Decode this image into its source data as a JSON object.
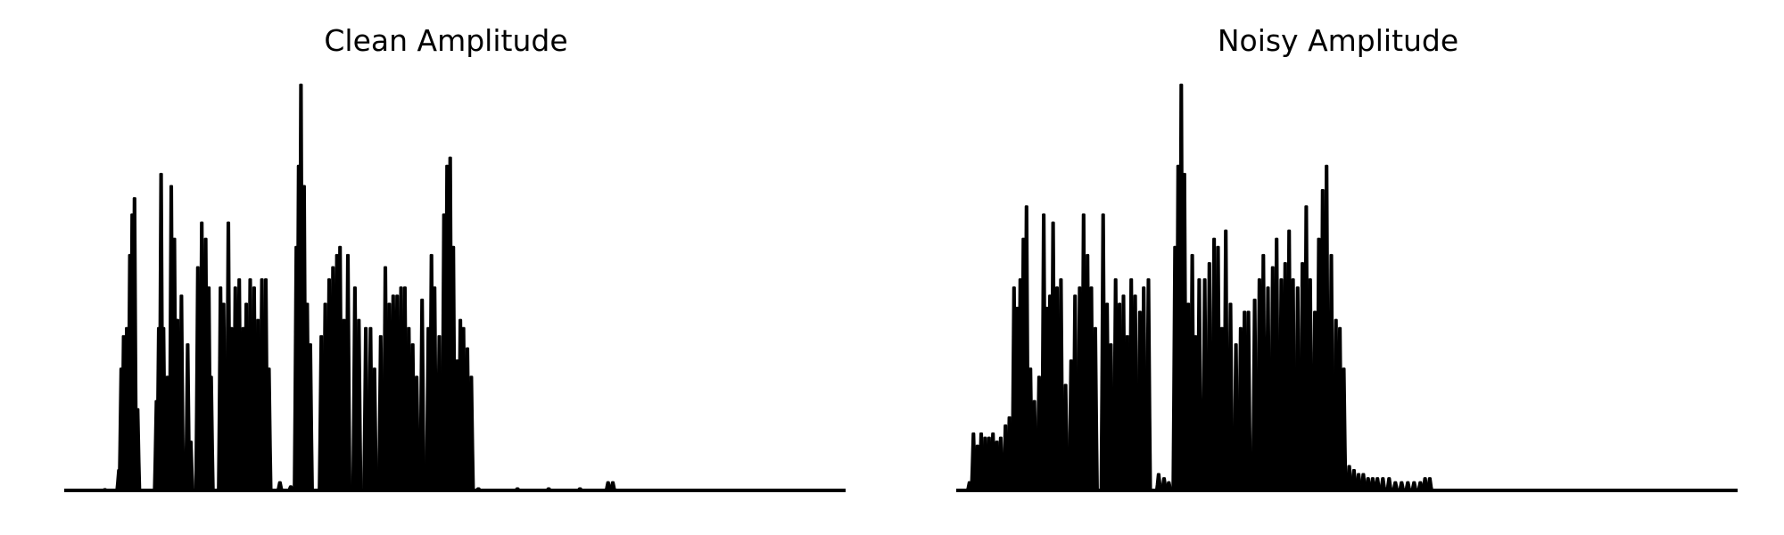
{
  "chart_data": [
    {
      "type": "area",
      "title": "Clean Amplitude",
      "color": "#000000",
      "axis_visible": false,
      "grid": false,
      "ylim": [
        0,
        1.0
      ],
      "peaks": [
        [
          0.052,
          0.003
        ],
        [
          0.07,
          0.05
        ],
        [
          0.073,
          0.3
        ],
        [
          0.076,
          0.38
        ],
        [
          0.08,
          0.4
        ],
        [
          0.084,
          0.58
        ],
        [
          0.087,
          0.68
        ],
        [
          0.09,
          0.72
        ],
        [
          0.094,
          0.2
        ],
        [
          0.118,
          0.22
        ],
        [
          0.121,
          0.4
        ],
        [
          0.124,
          0.78
        ],
        [
          0.127,
          0.4
        ],
        [
          0.132,
          0.28
        ],
        [
          0.137,
          0.75
        ],
        [
          0.141,
          0.62
        ],
        [
          0.145,
          0.42
        ],
        [
          0.15,
          0.48
        ],
        [
          0.158,
          0.36
        ],
        [
          0.162,
          0.12
        ],
        [
          0.171,
          0.55
        ],
        [
          0.176,
          0.66
        ],
        [
          0.181,
          0.62
        ],
        [
          0.185,
          0.5
        ],
        [
          0.188,
          0.28
        ],
        [
          0.2,
          0.5
        ],
        [
          0.204,
          0.46
        ],
        [
          0.21,
          0.66
        ],
        [
          0.214,
          0.4
        ],
        [
          0.219,
          0.5
        ],
        [
          0.224,
          0.52
        ],
        [
          0.229,
          0.4
        ],
        [
          0.233,
          0.46
        ],
        [
          0.238,
          0.52
        ],
        [
          0.243,
          0.5
        ],
        [
          0.248,
          0.42
        ],
        [
          0.253,
          0.52
        ],
        [
          0.258,
          0.52
        ],
        [
          0.262,
          0.3
        ],
        [
          0.276,
          0.02
        ],
        [
          0.29,
          0.01
        ],
        [
          0.297,
          0.6
        ],
        [
          0.3,
          0.8
        ],
        [
          0.303,
          1.0
        ],
        [
          0.307,
          0.75
        ],
        [
          0.311,
          0.46
        ],
        [
          0.315,
          0.36
        ],
        [
          0.329,
          0.38
        ],
        [
          0.334,
          0.46
        ],
        [
          0.339,
          0.52
        ],
        [
          0.344,
          0.55
        ],
        [
          0.349,
          0.58
        ],
        [
          0.353,
          0.6
        ],
        [
          0.358,
          0.42
        ],
        [
          0.363,
          0.58
        ],
        [
          0.372,
          0.5
        ],
        [
          0.377,
          0.42
        ],
        [
          0.386,
          0.4
        ],
        [
          0.392,
          0.4
        ],
        [
          0.397,
          0.3
        ],
        [
          0.405,
          0.38
        ],
        [
          0.411,
          0.55
        ],
        [
          0.416,
          0.46
        ],
        [
          0.421,
          0.48
        ],
        [
          0.426,
          0.48
        ],
        [
          0.431,
          0.5
        ],
        [
          0.436,
          0.5
        ],
        [
          0.441,
          0.4
        ],
        [
          0.446,
          0.36
        ],
        [
          0.451,
          0.28
        ],
        [
          0.458,
          0.47
        ],
        [
          0.466,
          0.4
        ],
        [
          0.47,
          0.58
        ],
        [
          0.474,
          0.5
        ],
        [
          0.48,
          0.38
        ],
        [
          0.486,
          0.68
        ],
        [
          0.49,
          0.8
        ],
        [
          0.494,
          0.82
        ],
        [
          0.498,
          0.6
        ],
        [
          0.503,
          0.32
        ],
        [
          0.507,
          0.42
        ],
        [
          0.511,
          0.4
        ],
        [
          0.516,
          0.35
        ],
        [
          0.521,
          0.28
        ],
        [
          0.53,
          0.005
        ],
        [
          0.58,
          0.005
        ],
        [
          0.62,
          0.005
        ],
        [
          0.66,
          0.005
        ],
        [
          0.696,
          0.02
        ],
        [
          0.702,
          0.02
        ]
      ]
    },
    {
      "type": "area",
      "title": "Noisy Amplitude",
      "color": "#000000",
      "axis_visible": false,
      "grid": false,
      "ylim": [
        0,
        1.0
      ],
      "peaks": [
        [
          0.017,
          0.02
        ],
        [
          0.022,
          0.14
        ],
        [
          0.027,
          0.11
        ],
        [
          0.032,
          0.14
        ],
        [
          0.037,
          0.13
        ],
        [
          0.042,
          0.13
        ],
        [
          0.047,
          0.14
        ],
        [
          0.052,
          0.12
        ],
        [
          0.057,
          0.13
        ],
        [
          0.063,
          0.16
        ],
        [
          0.068,
          0.18
        ],
        [
          0.074,
          0.5
        ],
        [
          0.078,
          0.45
        ],
        [
          0.082,
          0.52
        ],
        [
          0.086,
          0.62
        ],
        [
          0.09,
          0.7
        ],
        [
          0.095,
          0.3
        ],
        [
          0.1,
          0.22
        ],
        [
          0.106,
          0.28
        ],
        [
          0.112,
          0.68
        ],
        [
          0.116,
          0.45
        ],
        [
          0.12,
          0.48
        ],
        [
          0.124,
          0.66
        ],
        [
          0.129,
          0.5
        ],
        [
          0.134,
          0.52
        ],
        [
          0.14,
          0.26
        ],
        [
          0.147,
          0.32
        ],
        [
          0.152,
          0.48
        ],
        [
          0.158,
          0.5
        ],
        [
          0.163,
          0.68
        ],
        [
          0.168,
          0.58
        ],
        [
          0.173,
          0.5
        ],
        [
          0.178,
          0.4
        ],
        [
          0.188,
          0.68
        ],
        [
          0.193,
          0.46
        ],
        [
          0.198,
          0.36
        ],
        [
          0.204,
          0.52
        ],
        [
          0.209,
          0.46
        ],
        [
          0.214,
          0.48
        ],
        [
          0.219,
          0.38
        ],
        [
          0.224,
          0.52
        ],
        [
          0.229,
          0.48
        ],
        [
          0.235,
          0.44
        ],
        [
          0.24,
          0.5
        ],
        [
          0.246,
          0.52
        ],
        [
          0.259,
          0.04
        ],
        [
          0.266,
          0.03
        ],
        [
          0.272,
          0.02
        ],
        [
          0.28,
          0.6
        ],
        [
          0.284,
          0.8
        ],
        [
          0.288,
          1.0
        ],
        [
          0.292,
          0.78
        ],
        [
          0.297,
          0.46
        ],
        [
          0.302,
          0.58
        ],
        [
          0.306,
          0.38
        ],
        [
          0.311,
          0.52
        ],
        [
          0.318,
          0.52
        ],
        [
          0.324,
          0.56
        ],
        [
          0.33,
          0.62
        ],
        [
          0.335,
          0.6
        ],
        [
          0.34,
          0.4
        ],
        [
          0.345,
          0.64
        ],
        [
          0.351,
          0.46
        ],
        [
          0.358,
          0.36
        ],
        [
          0.364,
          0.4
        ],
        [
          0.369,
          0.44
        ],
        [
          0.374,
          0.44
        ],
        [
          0.382,
          0.47
        ],
        [
          0.388,
          0.52
        ],
        [
          0.393,
          0.58
        ],
        [
          0.399,
          0.5
        ],
        [
          0.405,
          0.55
        ],
        [
          0.41,
          0.62
        ],
        [
          0.416,
          0.52
        ],
        [
          0.421,
          0.56
        ],
        [
          0.426,
          0.64
        ],
        [
          0.431,
          0.52
        ],
        [
          0.437,
          0.5
        ],
        [
          0.443,
          0.56
        ],
        [
          0.448,
          0.7
        ],
        [
          0.453,
          0.52
        ],
        [
          0.459,
          0.44
        ],
        [
          0.464,
          0.62
        ],
        [
          0.469,
          0.74
        ],
        [
          0.474,
          0.8
        ],
        [
          0.48,
          0.58
        ],
        [
          0.486,
          0.42
        ],
        [
          0.491,
          0.4
        ],
        [
          0.496,
          0.3
        ],
        [
          0.503,
          0.06
        ],
        [
          0.509,
          0.05
        ],
        [
          0.515,
          0.04
        ],
        [
          0.521,
          0.04
        ],
        [
          0.527,
          0.03
        ],
        [
          0.533,
          0.03
        ],
        [
          0.539,
          0.03
        ],
        [
          0.546,
          0.03
        ],
        [
          0.554,
          0.03
        ],
        [
          0.562,
          0.02
        ],
        [
          0.57,
          0.02
        ],
        [
          0.578,
          0.02
        ],
        [
          0.586,
          0.02
        ],
        [
          0.594,
          0.02
        ],
        [
          0.6,
          0.03
        ],
        [
          0.606,
          0.03
        ]
      ]
    }
  ]
}
